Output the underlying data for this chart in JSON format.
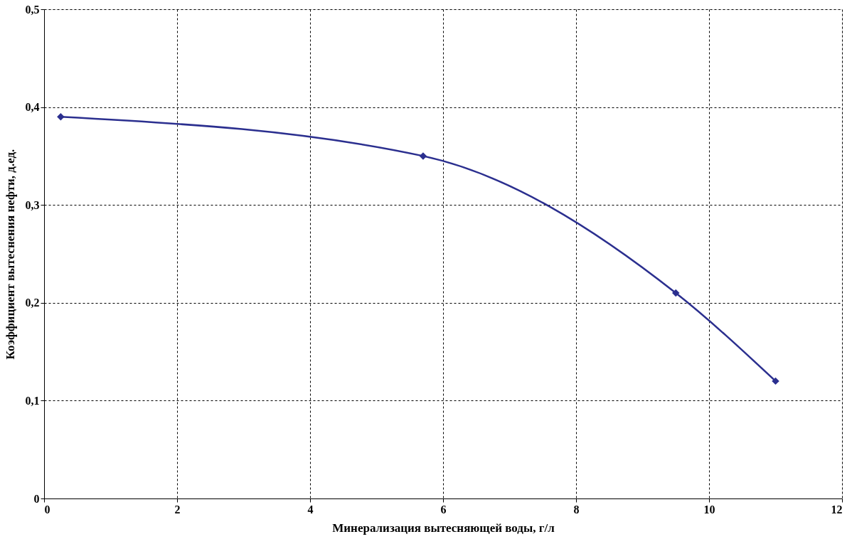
{
  "chart_data": {
    "type": "line",
    "xlabel": "Минерализация вытесняющей воды, г/л",
    "ylabel": "Коэффициент вытеснения нефти, д.ед.",
    "x": [
      0.25,
      5.7,
      9.5,
      11
    ],
    "series": [
      {
        "color": "#2b2f8f",
        "values": [
          0.39,
          0.35,
          0.21,
          0.12
        ]
      }
    ],
    "marker": "diamond",
    "line_style": "solid",
    "grid": true,
    "xlim": [
      0,
      12
    ],
    "xticks": [
      0,
      2,
      4,
      6,
      8,
      10,
      12
    ],
    "ylim": [
      0,
      0.5
    ],
    "yticks": [
      0,
      {
        "value": 0.1,
        "label": "0,1"
      },
      {
        "value": 0.2,
        "label": "0,2"
      },
      {
        "value": 0.3,
        "label": "0,3"
      },
      {
        "value": 0.4,
        "label": "0,4"
      },
      {
        "value": 0.5,
        "label": "0,5"
      }
    ]
  }
}
